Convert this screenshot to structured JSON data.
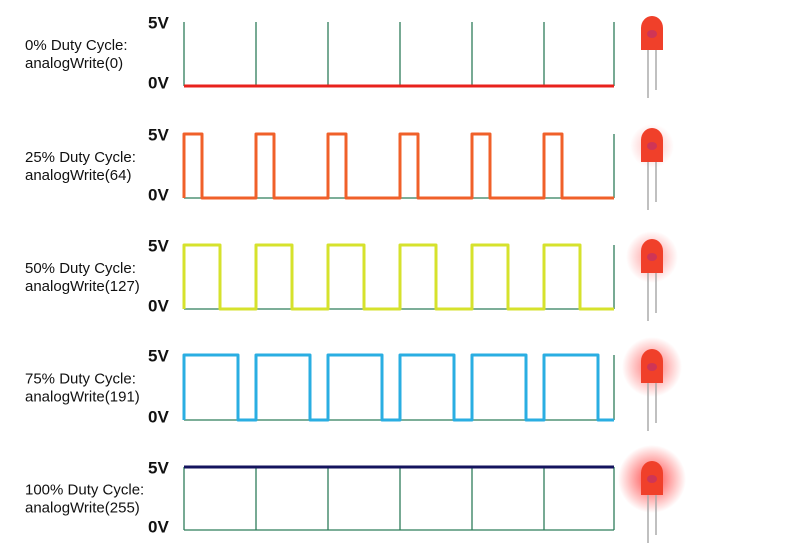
{
  "panels": [
    {
      "title": "0% Duty Cycle:",
      "code": "analogWrite(0)",
      "high": "5V",
      "low": "0V"
    },
    {
      "title": "25% Duty Cycle:",
      "code": "analogWrite(64)",
      "high": "5V",
      "low": "0V"
    },
    {
      "title": "50% Duty Cycle:",
      "code": "analogWrite(127)",
      "high": "5V",
      "low": "0V"
    },
    {
      "title": "75% Duty Cycle:",
      "code": "analogWrite(191)",
      "high": "5V",
      "low": "0V"
    },
    {
      "title": "100% Duty Cycle:",
      "code": "analogWrite(255)",
      "high": "5V",
      "low": "0V"
    }
  ]
}
